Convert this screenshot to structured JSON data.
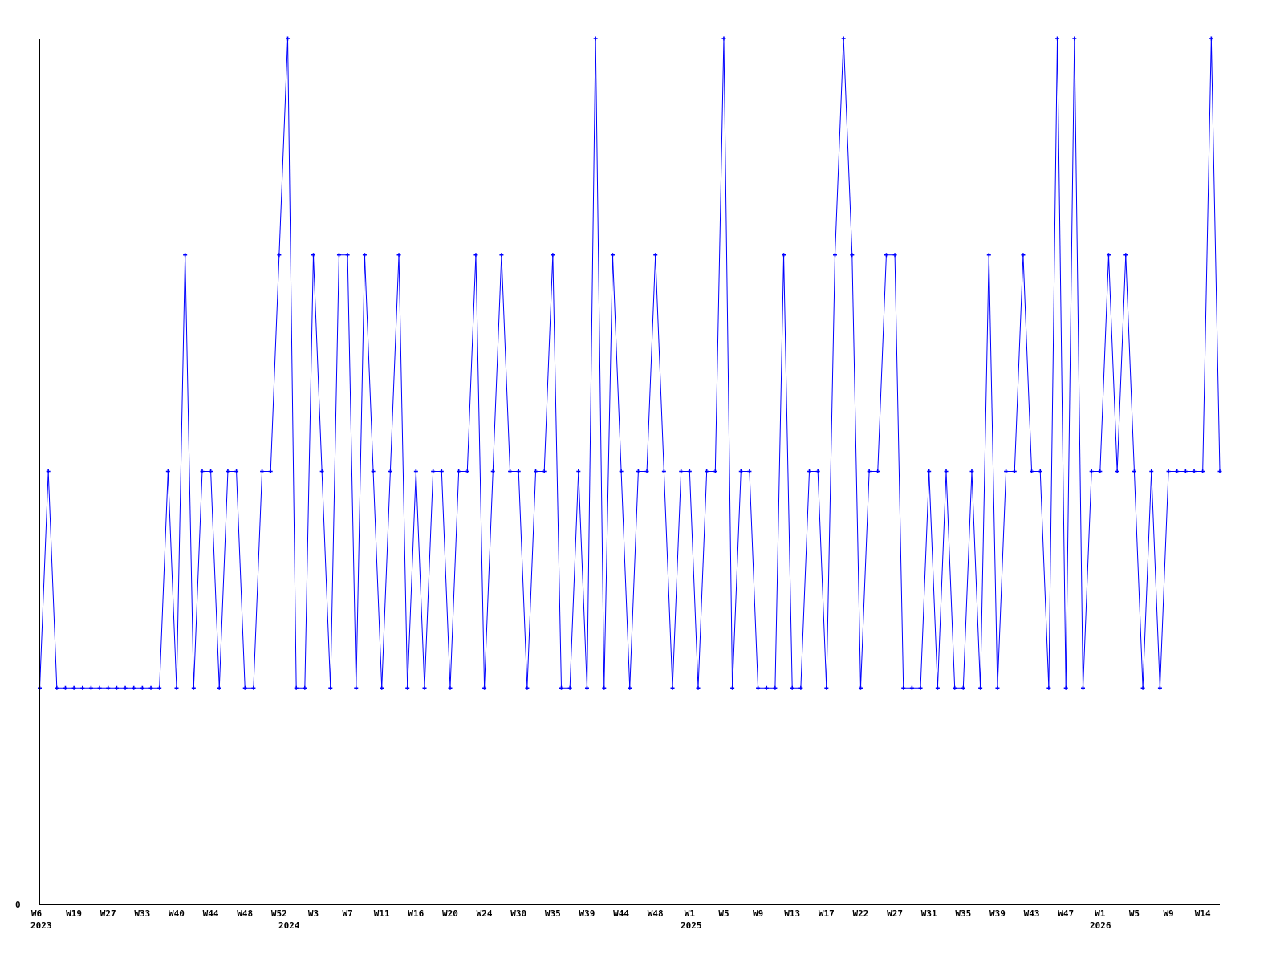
{
  "chart_data": {
    "type": "line",
    "title": "",
    "xlabel": "",
    "ylabel": "",
    "ylim": [
      0,
      4
    ],
    "y_tick_labels": [
      "0"
    ],
    "grid": false,
    "legend": "none",
    "line_color": "#0000ff",
    "axis_color": "#000000",
    "x_tick_labels": [
      "W6",
      "W19",
      "W27",
      "W33",
      "W40",
      "W44",
      "W48",
      "W52",
      "W3",
      "W7",
      "W11",
      "W16",
      "W20",
      "W24",
      "W30",
      "W35",
      "W39",
      "W44",
      "W48",
      "W1",
      "W5",
      "W9",
      "W13",
      "W17",
      "W22",
      "W27",
      "W31",
      "W35",
      "W39",
      "W43",
      "W47",
      "W1",
      "W5",
      "W9",
      "W14"
    ],
    "year_labels": [
      "2023",
      "2024",
      "2025",
      "2026"
    ],
    "series": [
      {
        "values": [
          1,
          2,
          1,
          1,
          1,
          1,
          1,
          1,
          1,
          1,
          1,
          1,
          1,
          1,
          1,
          2,
          1,
          3,
          1,
          2,
          2,
          1,
          2,
          2,
          1,
          1,
          2,
          2,
          3,
          4,
          1,
          1,
          3,
          2,
          1,
          3,
          3,
          1,
          3,
          2,
          1,
          2,
          3,
          1,
          2,
          1,
          2,
          2,
          1,
          2,
          2,
          3,
          1,
          2,
          3,
          2,
          2,
          1,
          2,
          2,
          3,
          1,
          1,
          2,
          1,
          4,
          1,
          3,
          2,
          1,
          2,
          2,
          3,
          2,
          1,
          2,
          2,
          1,
          2,
          2,
          4,
          1,
          2,
          2,
          1,
          1,
          1,
          3,
          1,
          1,
          2,
          2,
          1,
          3,
          4,
          3,
          1,
          2,
          2,
          3,
          3,
          1,
          1,
          1,
          2,
          1,
          2,
          1,
          1,
          2,
          1,
          3,
          1,
          2,
          2,
          3,
          2,
          2,
          1,
          4,
          1,
          4,
          1,
          2,
          2,
          3,
          2,
          3,
          2,
          1,
          2,
          1,
          2,
          2,
          2,
          2,
          2,
          4,
          2
        ]
      }
    ]
  }
}
